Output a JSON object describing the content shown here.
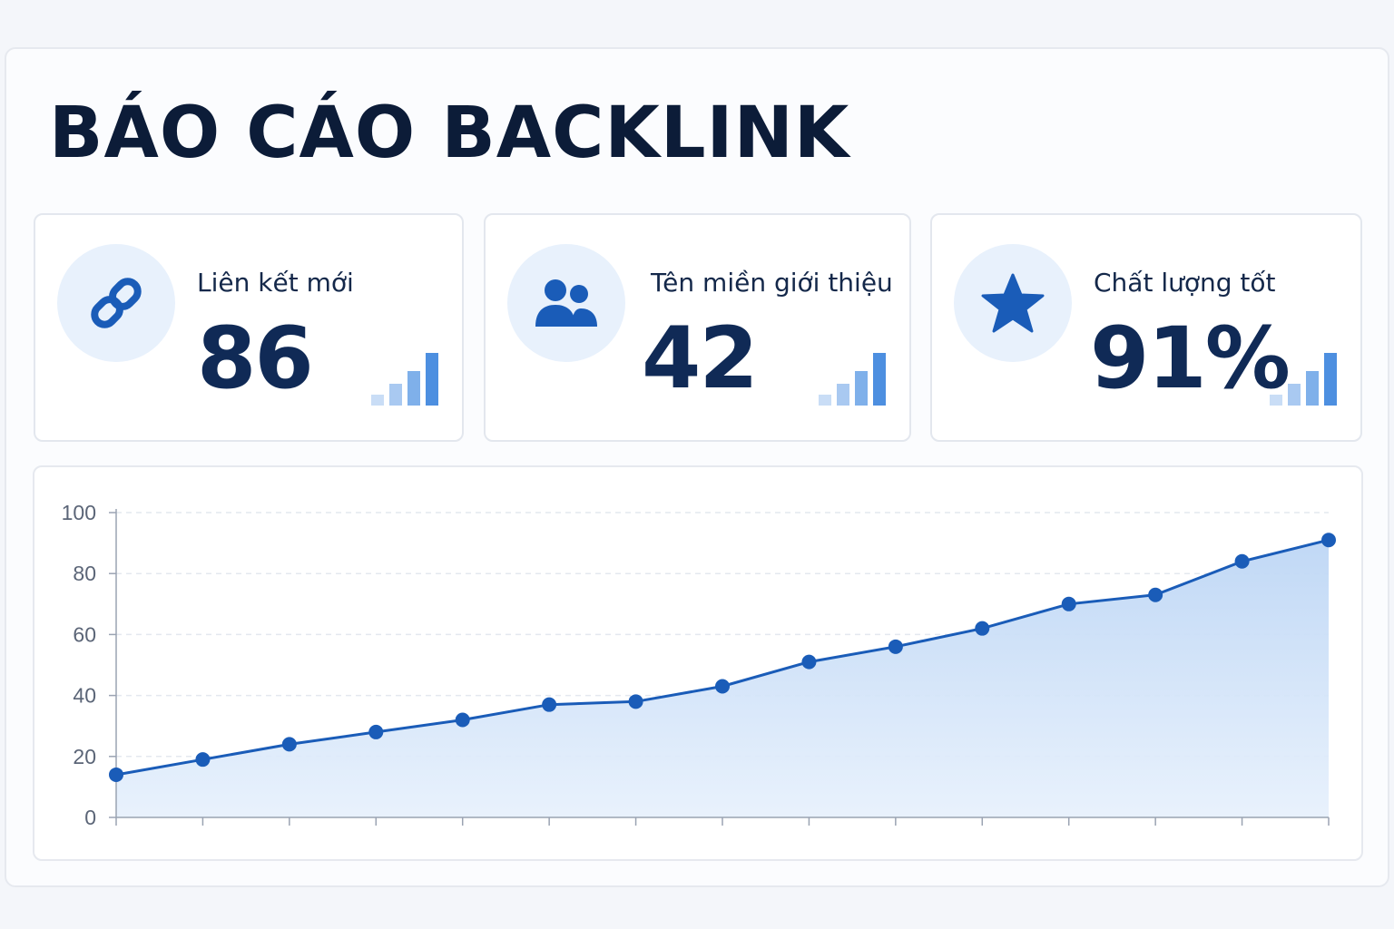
{
  "title": "BÁO CÁO BACKLINK",
  "cards": [
    {
      "icon": "link-icon",
      "label": "Liên kết mới",
      "value": "86"
    },
    {
      "icon": "users-icon",
      "label": "Tên miền giới thiệu",
      "value": "42"
    },
    {
      "icon": "star-icon",
      "label": "Chất lượng tốt",
      "value": "91%"
    }
  ],
  "colors": {
    "accent": "#1a5cb8",
    "title": "#0c1c38",
    "value": "#102a56",
    "icon_bg": "#e8f1fc",
    "area_fill": "#cfe2f8"
  },
  "chart_data": {
    "type": "area",
    "x": [
      1,
      2,
      3,
      4,
      5,
      6,
      7,
      8,
      9,
      10,
      11,
      12,
      13,
      14,
      15
    ],
    "series": [
      {
        "values": [
          14,
          19,
          24,
          28,
          32,
          37,
          38,
          43,
          51,
          56,
          62,
          70,
          73,
          84,
          91
        ]
      }
    ],
    "yticks": [
      "0",
      "20",
      "40",
      "60",
      "80",
      "100"
    ],
    "ylim": [
      0,
      100
    ],
    "xlabel": "",
    "ylabel": "",
    "title": "",
    "grid": true,
    "legend": "none"
  }
}
